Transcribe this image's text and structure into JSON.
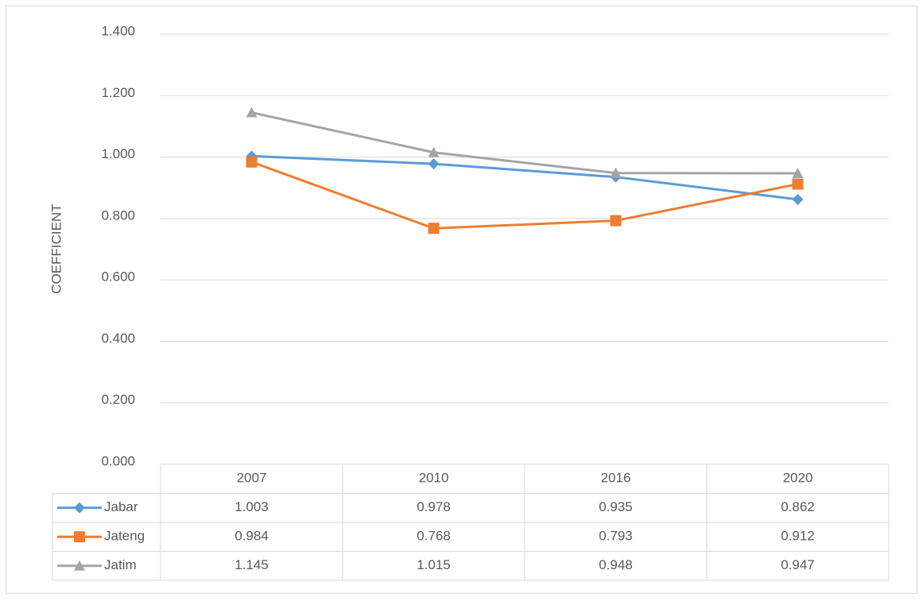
{
  "chart_data": {
    "type": "line",
    "y_label": "COEFFICIENT",
    "categories": [
      "2007",
      "2010",
      "2016",
      "2020"
    ],
    "series": [
      {
        "name": "Jabar",
        "color": "#5b9bd5",
        "marker": "diamond",
        "values": [
          1.003,
          0.978,
          0.935,
          0.862
        ]
      },
      {
        "name": "Jateng",
        "color": "#ed7d31",
        "marker": "square",
        "values": [
          0.984,
          0.768,
          0.793,
          0.912
        ]
      },
      {
        "name": "Jatim",
        "color": "#a5a5a5",
        "marker": "triangle",
        "values": [
          1.145,
          1.015,
          0.948,
          0.947
        ]
      }
    ],
    "ylim": [
      0,
      1.4
    ],
    "yticks": [
      {
        "value": 0,
        "label": "0.000"
      },
      {
        "value": 0.2,
        "label": "0.200"
      },
      {
        "value": 0.4,
        "label": "0.400"
      },
      {
        "value": 0.6,
        "label": "0.600"
      },
      {
        "value": 0.8,
        "label": "0.800"
      },
      {
        "value": 1.0,
        "label": "1.000"
      },
      {
        "value": 1.2,
        "label": "1.200"
      },
      {
        "value": 1.4,
        "label": "1.400"
      }
    ],
    "grid": true,
    "data_table": true
  }
}
